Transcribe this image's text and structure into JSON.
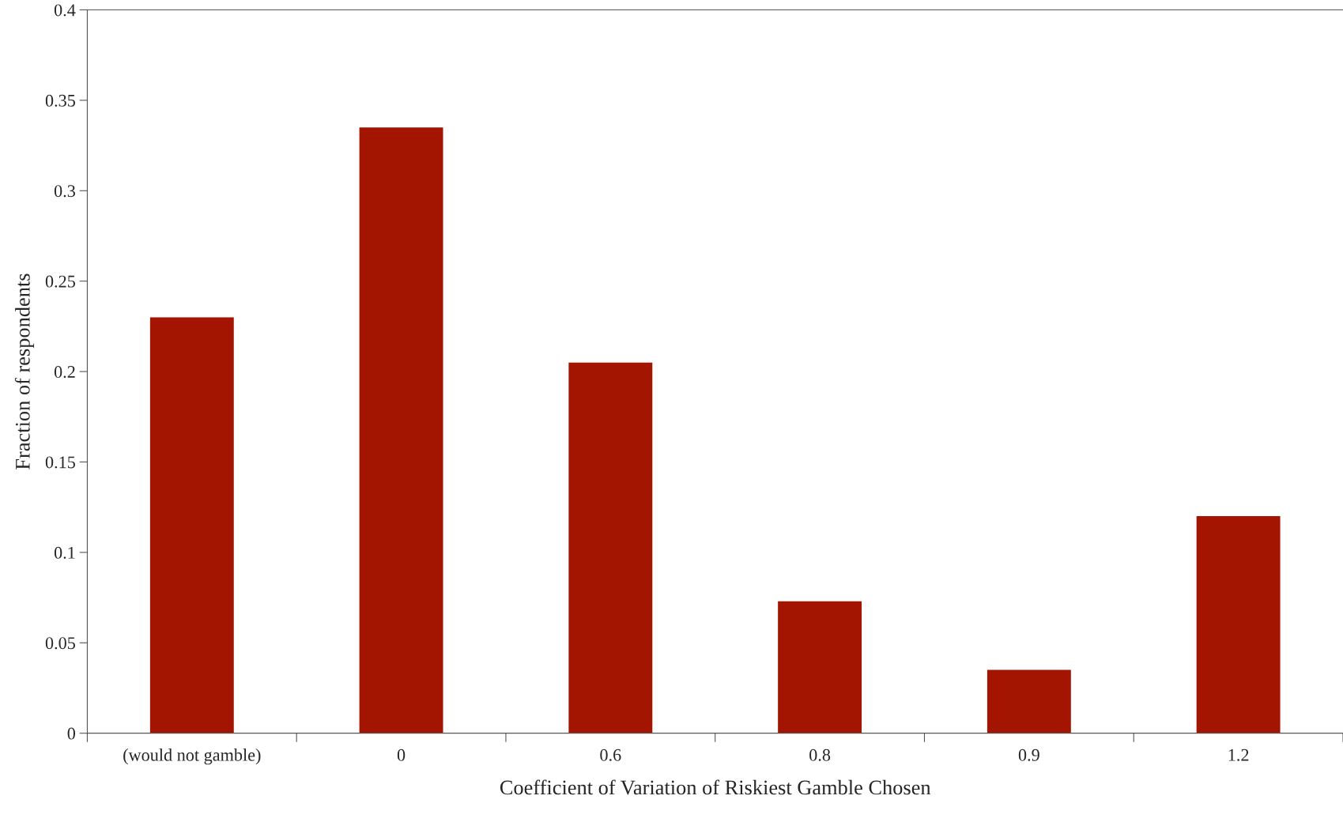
{
  "chart_data": {
    "type": "bar",
    "xlabel": "Coefficient of Variation of Riskiest Gamble Chosen",
    "ylabel": "Fraction of respondents",
    "categories": [
      "(would not gamble)",
      "0",
      "0.6",
      "0.8",
      "0.9",
      "1.2"
    ],
    "values": [
      0.23,
      0.335,
      0.205,
      0.073,
      0.035,
      0.12
    ],
    "color": "#a31500",
    "ylim": [
      0,
      0.4
    ],
    "yticks": [
      0,
      0.05,
      0.1,
      0.15,
      0.2,
      0.25,
      0.3,
      0.35,
      0.4
    ],
    "grid": false
  }
}
